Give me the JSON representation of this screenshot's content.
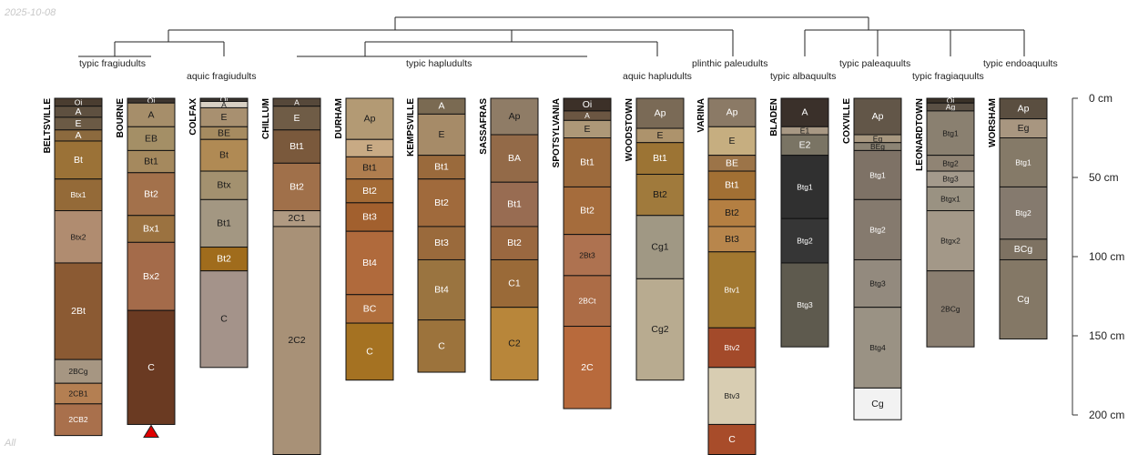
{
  "date": "2025-10-08",
  "footer": "All",
  "chart_data": {
    "type": "soil-profile-sketch",
    "depth_unit": "cm",
    "depth_axis": {
      "ticks": [
        0,
        50,
        100,
        150,
        200
      ],
      "labels": [
        "0 cm",
        "50 cm",
        "100 cm",
        "150 cm",
        "200 cm"
      ]
    },
    "classifications": [
      "typic fragiudults",
      "aquic fragiudults",
      "typic hapludults",
      "aquic hapludults",
      "plinthic paleudults",
      "typic albaquults",
      "typic paleaquults",
      "typic fragiaquults",
      "typic endoaquults"
    ],
    "profiles": [
      {
        "name": "BELTSVILLE",
        "horizons": [
          {
            "name": "Oi",
            "top": 0,
            "bottom": 5,
            "color": "#4a3d30"
          },
          {
            "name": "A",
            "top": 5,
            "bottom": 12,
            "color": "#5e5040"
          },
          {
            "name": "E",
            "top": 12,
            "bottom": 20,
            "color": "#6b5a45"
          },
          {
            "name": "A",
            "top": 20,
            "bottom": 27,
            "color": "#8c6a3e"
          },
          {
            "name": "Bt",
            "top": 27,
            "bottom": 51,
            "color": "#9b7237"
          },
          {
            "name": "Btx1",
            "top": 51,
            "bottom": 71,
            "color": "#946a38"
          },
          {
            "name": "Btx2",
            "top": 71,
            "bottom": 104,
            "color": "#b08c70"
          },
          {
            "name": "2Bt",
            "top": 104,
            "bottom": 165,
            "color": "#8b5a33"
          },
          {
            "name": "2BCg",
            "top": 165,
            "bottom": 180,
            "color": "#a69682"
          },
          {
            "name": "2CB1",
            "top": 180,
            "bottom": 193,
            "color": "#b47f52"
          },
          {
            "name": "2CB2",
            "top": 193,
            "bottom": 213,
            "color": "#a9704c"
          }
        ]
      },
      {
        "name": "BOURNE",
        "truncated": true,
        "horizons": [
          {
            "name": "Oi",
            "top": 0,
            "bottom": 3,
            "color": "#3e3630"
          },
          {
            "name": "A",
            "top": 3,
            "bottom": 18,
            "color": "#a68e6a"
          },
          {
            "name": "EB",
            "top": 18,
            "bottom": 33,
            "color": "#a48f66"
          },
          {
            "name": "Bt1",
            "top": 33,
            "bottom": 47,
            "color": "#a5895e"
          },
          {
            "name": "Bt2",
            "top": 47,
            "bottom": 74,
            "color": "#a3714b"
          },
          {
            "name": "Bx1",
            "top": 74,
            "bottom": 91,
            "color": "#9b7240"
          },
          {
            "name": "Bx2",
            "top": 91,
            "bottom": 134,
            "color": "#a46b4a"
          },
          {
            "name": "C",
            "top": 134,
            "bottom": 206,
            "color": "#6a3a22"
          }
        ]
      },
      {
        "name": "COLFAX",
        "horizons": [
          {
            "name": "Oi",
            "top": 0,
            "bottom": 2,
            "color": "#3b3530"
          },
          {
            "name": "A",
            "top": 2,
            "bottom": 6,
            "color": "#d8d0c4"
          },
          {
            "name": "E",
            "top": 6,
            "bottom": 18,
            "color": "#a89070"
          },
          {
            "name": "BE",
            "top": 18,
            "bottom": 26,
            "color": "#a68b60"
          },
          {
            "name": "Bt",
            "top": 26,
            "bottom": 46,
            "color": "#b08a54"
          },
          {
            "name": "Btx",
            "top": 46,
            "bottom": 64,
            "color": "#a3916f"
          },
          {
            "name": "Bt1",
            "top": 64,
            "bottom": 94,
            "color": "#a39782"
          },
          {
            "name": "Bt2",
            "top": 94,
            "bottom": 109,
            "color": "#a06c1c"
          },
          {
            "name": "C",
            "top": 109,
            "bottom": 170,
            "color": "#a4938a"
          }
        ]
      },
      {
        "name": "CHILLUM",
        "horizons": [
          {
            "name": "A",
            "top": 0,
            "bottom": 5,
            "color": "#56483a"
          },
          {
            "name": "E",
            "top": 5,
            "bottom": 20,
            "color": "#6f5c46"
          },
          {
            "name": "Bt1",
            "top": 20,
            "bottom": 41,
            "color": "#7a593c"
          },
          {
            "name": "Bt2",
            "top": 41,
            "bottom": 71,
            "color": "#a0704a"
          },
          {
            "name": "2C1",
            "top": 71,
            "bottom": 81,
            "color": "#b09a82"
          },
          {
            "name": "2C2",
            "top": 81,
            "bottom": 225,
            "color": "#a89177"
          }
        ]
      },
      {
        "name": "DURHAM",
        "horizons": [
          {
            "name": "Ap",
            "top": 0,
            "bottom": 26,
            "color": "#b39a74"
          },
          {
            "name": "E",
            "top": 26,
            "bottom": 37,
            "color": "#c8aa84"
          },
          {
            "name": "Bt1",
            "top": 37,
            "bottom": 51,
            "color": "#af7e4f"
          },
          {
            "name": "Bt2",
            "top": 51,
            "bottom": 66,
            "color": "#a36a35"
          },
          {
            "name": "Bt3",
            "top": 66,
            "bottom": 84,
            "color": "#a2602e"
          },
          {
            "name": "Bt4",
            "top": 84,
            "bottom": 124,
            "color": "#b06a3c"
          },
          {
            "name": "BC",
            "top": 124,
            "bottom": 142,
            "color": "#b06e3c"
          },
          {
            "name": "C",
            "top": 142,
            "bottom": 178,
            "color": "#a57222"
          }
        ]
      },
      {
        "name": "KEMPSVILLE",
        "horizons": [
          {
            "name": "A",
            "top": 0,
            "bottom": 10,
            "color": "#7a6a52"
          },
          {
            "name": "E",
            "top": 10,
            "bottom": 36,
            "color": "#a68b68"
          },
          {
            "name": "Bt1",
            "top": 36,
            "bottom": 51,
            "color": "#9a6a3c"
          },
          {
            "name": "Bt2",
            "top": 51,
            "bottom": 81,
            "color": "#a06a3c"
          },
          {
            "name": "Bt3",
            "top": 81,
            "bottom": 102,
            "color": "#9a6a3c"
          },
          {
            "name": "Bt4",
            "top": 102,
            "bottom": 140,
            "color": "#9a7440"
          },
          {
            "name": "C",
            "top": 140,
            "bottom": 173,
            "color": "#9c733c"
          }
        ]
      },
      {
        "name": "SASSAFRAS",
        "horizons": [
          {
            "name": "Ap",
            "top": 0,
            "bottom": 23,
            "color": "#8f7c66"
          },
          {
            "name": "BA",
            "top": 23,
            "bottom": 53,
            "color": "#936a48"
          },
          {
            "name": "Bt1",
            "top": 53,
            "bottom": 81,
            "color": "#986c52"
          },
          {
            "name": "Bt2",
            "top": 81,
            "bottom": 102,
            "color": "#9a6840"
          },
          {
            "name": "C1",
            "top": 102,
            "bottom": 132,
            "color": "#9a6a38"
          },
          {
            "name": "C2",
            "top": 132,
            "bottom": 178,
            "color": "#b8863a"
          }
        ]
      },
      {
        "name": "SPOTSYLVANIA",
        "horizons": [
          {
            "name": "Oi",
            "top": 0,
            "bottom": 8,
            "color": "#3c3028"
          },
          {
            "name": "A",
            "top": 8,
            "bottom": 14,
            "color": "#6b5642"
          },
          {
            "name": "E",
            "top": 14,
            "bottom": 25,
            "color": "#ad9878"
          },
          {
            "name": "Bt1",
            "top": 25,
            "bottom": 56,
            "color": "#9c6a3c"
          },
          {
            "name": "Bt2",
            "top": 56,
            "bottom": 86,
            "color": "#a56c3c"
          },
          {
            "name": "2Bt3",
            "top": 86,
            "bottom": 112,
            "color": "#ae7250"
          },
          {
            "name": "2BCt",
            "top": 112,
            "bottom": 144,
            "color": "#ac6c46"
          },
          {
            "name": "2C",
            "top": 144,
            "bottom": 196,
            "color": "#b86a3c"
          }
        ]
      },
      {
        "name": "WOODSTOWN",
        "horizons": [
          {
            "name": "Ap",
            "top": 0,
            "bottom": 19,
            "color": "#7a6a56"
          },
          {
            "name": "E",
            "top": 19,
            "bottom": 28,
            "color": "#ad936c"
          },
          {
            "name": "Bt1",
            "top": 28,
            "bottom": 48,
            "color": "#9c7434"
          },
          {
            "name": "Bt2",
            "top": 48,
            "bottom": 74,
            "color": "#a07a3c"
          },
          {
            "name": "Cg1",
            "top": 74,
            "bottom": 114,
            "color": "#a09884"
          },
          {
            "name": "Cg2",
            "top": 114,
            "bottom": 178,
            "color": "#b8ab90"
          }
        ]
      },
      {
        "name": "VARINA",
        "horizons": [
          {
            "name": "Ap",
            "top": 0,
            "bottom": 18,
            "color": "#8b7a66"
          },
          {
            "name": "E",
            "top": 18,
            "bottom": 36,
            "color": "#c6ae80"
          },
          {
            "name": "BE",
            "top": 36,
            "bottom": 46,
            "color": "#9c7448"
          },
          {
            "name": "Bt1",
            "top": 46,
            "bottom": 64,
            "color": "#a27034"
          },
          {
            "name": "Bt2",
            "top": 64,
            "bottom": 81,
            "color": "#b47f42"
          },
          {
            "name": "Bt3",
            "top": 81,
            "bottom": 97,
            "color": "#b8864c"
          },
          {
            "name": "Btv1",
            "top": 97,
            "bottom": 145,
            "color": "#a27830"
          },
          {
            "name": "Btv2",
            "top": 145,
            "bottom": 170,
            "color": "#a34a2a"
          },
          {
            "name": "Btv3",
            "top": 170,
            "bottom": 206,
            "color": "#d8cdb2"
          },
          {
            "name": "C",
            "top": 206,
            "bottom": 225,
            "color": "#a84c2a"
          }
        ]
      },
      {
        "name": "BLADEN",
        "horizons": [
          {
            "name": "A",
            "top": 0,
            "bottom": 18,
            "color": "#3a302a"
          },
          {
            "name": "E1",
            "top": 18,
            "bottom": 23,
            "color": "#a89884"
          },
          {
            "name": "E2",
            "top": 23,
            "bottom": 36,
            "color": "#7a7464"
          },
          {
            "name": "Btg1",
            "top": 36,
            "bottom": 76,
            "color": "#303030"
          },
          {
            "name": "Btg2",
            "top": 76,
            "bottom": 104,
            "color": "#363636"
          },
          {
            "name": "Btg3",
            "top": 104,
            "bottom": 157,
            "color": "#5e5a4e"
          }
        ]
      },
      {
        "name": "COXVILLE",
        "horizons": [
          {
            "name": "Ap",
            "top": 0,
            "bottom": 23,
            "color": "#625648"
          },
          {
            "name": "Eg",
            "top": 23,
            "bottom": 28,
            "color": "#a89880"
          },
          {
            "name": "BEg",
            "top": 28,
            "bottom": 33,
            "color": "#8c8474"
          },
          {
            "name": "Btg1",
            "top": 33,
            "bottom": 64,
            "color": "#7e7266"
          },
          {
            "name": "Btg2",
            "top": 64,
            "bottom": 102,
            "color": "#857a6e"
          },
          {
            "name": "Btg3",
            "top": 102,
            "bottom": 132,
            "color": "#938a7e"
          },
          {
            "name": "Btg4",
            "top": 132,
            "bottom": 183,
            "color": "#9a9284"
          },
          {
            "name": "Cg",
            "top": 183,
            "bottom": 203,
            "color": "#f2f2f2"
          }
        ]
      },
      {
        "name": "LEONARDTOWN",
        "horizons": [
          {
            "name": "Oi",
            "top": 0,
            "bottom": 3,
            "color": "#3a3228"
          },
          {
            "name": "Ag",
            "top": 3,
            "bottom": 8,
            "color": "#5a5044"
          },
          {
            "name": "Btg1",
            "top": 8,
            "bottom": 36,
            "color": "#8a8070"
          },
          {
            "name": "Btg2",
            "top": 36,
            "bottom": 46,
            "color": "#908474"
          },
          {
            "name": "Btg3",
            "top": 46,
            "bottom": 56,
            "color": "#a49a8c"
          },
          {
            "name": "Btgx1",
            "top": 56,
            "bottom": 71,
            "color": "#9a9282"
          },
          {
            "name": "Btgx2",
            "top": 71,
            "bottom": 109,
            "color": "#a39888"
          },
          {
            "name": "2BCg",
            "top": 109,
            "bottom": 157,
            "color": "#8a7e70"
          }
        ]
      },
      {
        "name": "WORSHAM",
        "horizons": [
          {
            "name": "Ap",
            "top": 0,
            "bottom": 13,
            "color": "#5a4e40"
          },
          {
            "name": "Eg",
            "top": 13,
            "bottom": 25,
            "color": "#a89680"
          },
          {
            "name": "Btg1",
            "top": 25,
            "bottom": 56,
            "color": "#857a68"
          },
          {
            "name": "Btg2",
            "top": 56,
            "bottom": 89,
            "color": "#857a6e"
          },
          {
            "name": "BCg",
            "top": 89,
            "bottom": 102,
            "color": "#7e7262"
          },
          {
            "name": "Cg",
            "top": 102,
            "bottom": 152,
            "color": "#847866"
          }
        ]
      }
    ]
  }
}
